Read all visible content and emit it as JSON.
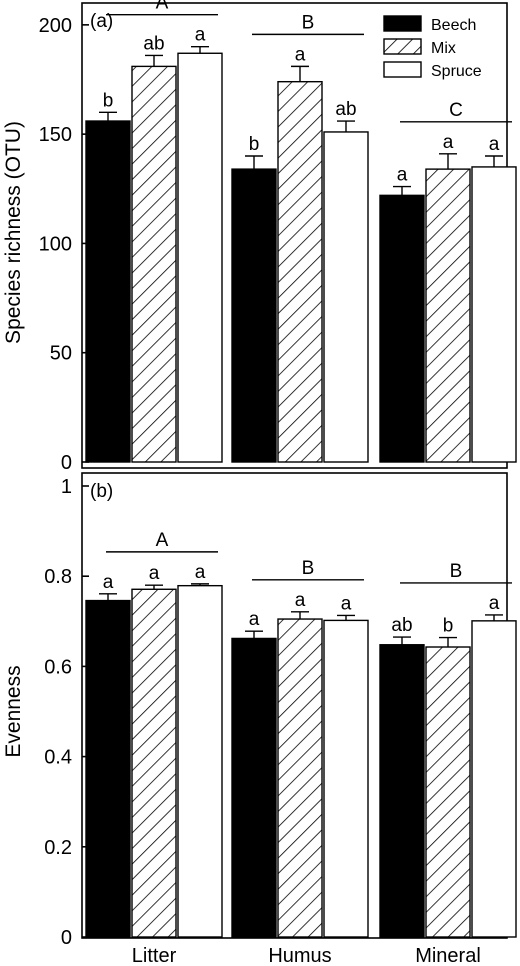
{
  "chart_data": {
    "type": "bar",
    "categories": [
      "Litter",
      "Humus",
      "Mineral"
    ],
    "legend": {
      "placement": "top-right",
      "entries": [
        {
          "name": "Beech",
          "fill": "solid-black"
        },
        {
          "name": "Mix",
          "fill": "diagonal-hatch"
        },
        {
          "name": "Spruce",
          "fill": "white"
        }
      ]
    },
    "panels": [
      {
        "label": "(a)",
        "ylabel": "Species richness (OTU)",
        "ylim": [
          0,
          210
        ],
        "yticks": [
          0,
          50,
          100,
          150,
          200
        ],
        "ytick_labels": [
          "0",
          "50",
          "100",
          "150",
          "200"
        ],
        "series": [
          {
            "name": "Beech",
            "values": [
              156,
              134,
              122
            ],
            "errors": [
              4,
              6,
              4
            ],
            "letters": [
              "b",
              "b",
              "a"
            ]
          },
          {
            "name": "Mix",
            "values": [
              181,
              174,
              134
            ],
            "errors": [
              5,
              7,
              7
            ],
            "letters": [
              "ab",
              "a",
              "a"
            ]
          },
          {
            "name": "Spruce",
            "values": [
              187,
              151,
              135
            ],
            "errors": [
              3,
              5,
              5
            ],
            "letters": [
              "a",
              "ab",
              "a"
            ]
          }
        ],
        "group_letters": [
          "A",
          "B",
          "C"
        ]
      },
      {
        "label": "(b)",
        "ylabel": "Evenness",
        "ylim": [
          0,
          1
        ],
        "yticks": [
          0,
          0.2,
          0.4,
          0.6,
          0.8,
          1
        ],
        "ytick_labels": [
          "0",
          "0.2",
          "0.4",
          "0.6",
          "0.8",
          "1"
        ],
        "series": [
          {
            "name": "Beech",
            "values": [
              0.746,
              0.662,
              0.648
            ],
            "errors": [
              0.015,
              0.016,
              0.017
            ],
            "letters": [
              "a",
              "a",
              "ab"
            ]
          },
          {
            "name": "Mix",
            "values": [
              0.771,
              0.705,
              0.643
            ],
            "errors": [
              0.009,
              0.016,
              0.021
            ],
            "letters": [
              "a",
              "a",
              "b"
            ]
          },
          {
            "name": "Spruce",
            "values": [
              0.779,
              0.702,
              0.701
            ],
            "errors": [
              0.004,
              0.011,
              0.013
            ],
            "letters": [
              "a",
              "a",
              "a"
            ]
          }
        ],
        "group_letters": [
          "A",
          "B",
          "B"
        ]
      }
    ]
  }
}
